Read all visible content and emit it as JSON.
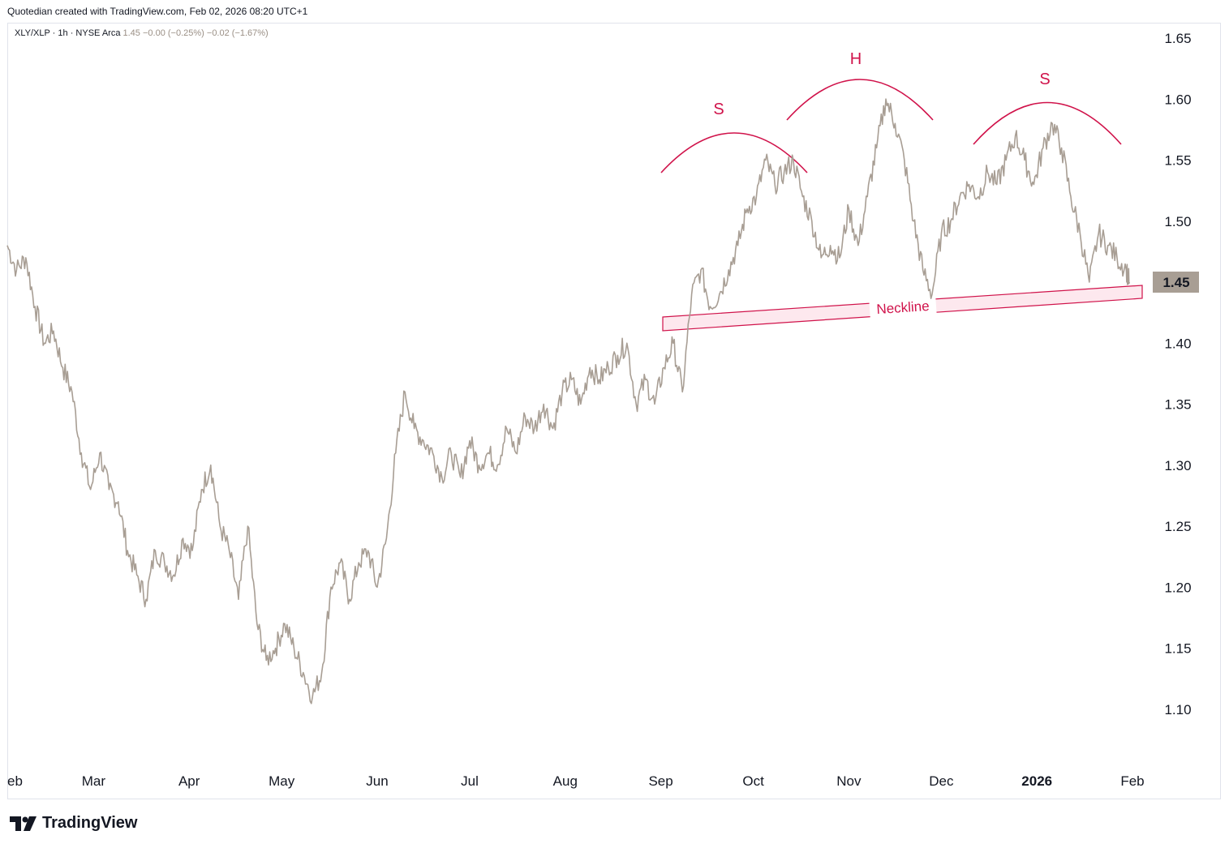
{
  "header": {
    "credit": "Quotedian created with TradingView.com, Feb 02, 2026 08:20 UTC+1"
  },
  "legend": {
    "symbol": "XLY/XLP · 1h · NYSE Arca",
    "last": "1.45",
    "change": "−0.00 (−0.25%)",
    "change2": "−0.02 (−1.67%)"
  },
  "footer": {
    "brand": "TradingView",
    "logo_icon": "tradingview-logo-icon"
  },
  "colors": {
    "price_line": "#a89e94",
    "annotation": "#d0124a",
    "neck_fill": "#fde8ee",
    "price_tag_bg": "#a89e94"
  },
  "chart_data": {
    "type": "line",
    "title": "",
    "xlabel": "",
    "ylabel": "",
    "ylim": [
      1.05,
      1.67
    ],
    "y_ticks": [
      "1.65",
      "1.60",
      "1.55",
      "1.50",
      "1.45",
      "1.40",
      "1.35",
      "1.30",
      "1.25",
      "1.20",
      "1.15",
      "1.10"
    ],
    "x_ticks": [
      "eb",
      "Mar",
      "Apr",
      "May",
      "Jun",
      "Jul",
      "Aug",
      "Sep",
      "Oct",
      "Nov",
      "Dec",
      "2026",
      "Feb"
    ],
    "last_price_tag": "1.45",
    "grid": false,
    "series": [
      {
        "x": [
          "2025-02-01",
          "2025-02-04",
          "2025-02-07",
          "2025-02-10",
          "2025-02-13",
          "2025-02-16",
          "2025-02-19",
          "2025-02-22",
          "2025-02-25",
          "2025-02-28",
          "2025-03-03",
          "2025-03-06",
          "2025-03-09",
          "2025-03-12",
          "2025-03-15",
          "2025-03-18",
          "2025-03-21",
          "2025-03-24",
          "2025-03-27",
          "2025-03-30",
          "2025-04-02",
          "2025-04-05",
          "2025-04-08",
          "2025-04-11",
          "2025-04-14",
          "2025-04-17",
          "2025-04-20",
          "2025-04-23",
          "2025-04-26",
          "2025-04-29",
          "2025-05-02",
          "2025-05-05",
          "2025-05-08",
          "2025-05-11",
          "2025-05-14",
          "2025-05-17",
          "2025-05-20",
          "2025-05-23",
          "2025-05-26",
          "2025-05-29",
          "2025-06-01",
          "2025-06-04",
          "2025-06-07",
          "2025-06-10",
          "2025-06-13",
          "2025-06-16",
          "2025-06-19",
          "2025-06-22",
          "2025-06-25",
          "2025-06-28",
          "2025-07-01",
          "2025-07-04",
          "2025-07-07",
          "2025-07-10",
          "2025-07-13",
          "2025-07-16",
          "2025-07-19",
          "2025-07-22",
          "2025-07-25",
          "2025-07-28",
          "2025-07-31",
          "2025-08-03",
          "2025-08-06",
          "2025-08-09",
          "2025-08-12",
          "2025-08-15",
          "2025-08-18",
          "2025-08-21",
          "2025-08-24",
          "2025-08-27",
          "2025-08-30",
          "2025-09-02",
          "2025-09-05",
          "2025-09-08",
          "2025-09-11",
          "2025-09-14",
          "2025-09-17",
          "2025-09-20",
          "2025-09-23",
          "2025-09-26",
          "2025-09-29",
          "2025-10-02",
          "2025-10-05",
          "2025-10-08",
          "2025-10-11",
          "2025-10-14",
          "2025-10-17",
          "2025-10-20",
          "2025-10-23",
          "2025-10-26",
          "2025-10-29",
          "2025-11-01",
          "2025-11-04",
          "2025-11-07",
          "2025-11-10",
          "2025-11-13",
          "2025-11-16",
          "2025-11-19",
          "2025-11-22",
          "2025-11-25",
          "2025-11-28",
          "2025-12-01",
          "2025-12-04",
          "2025-12-07",
          "2025-12-10",
          "2025-12-13",
          "2025-12-16",
          "2025-12-19",
          "2025-12-22",
          "2025-12-25",
          "2025-12-28",
          "2025-12-31",
          "2026-01-03",
          "2026-01-06",
          "2026-01-09",
          "2026-01-12",
          "2026-01-15",
          "2026-01-18",
          "2026-01-21",
          "2026-01-24",
          "2026-01-27",
          "2026-01-30",
          "2026-01-31"
        ],
        "y": [
          1.48,
          1.46,
          1.47,
          1.43,
          1.4,
          1.41,
          1.38,
          1.36,
          1.31,
          1.28,
          1.31,
          1.28,
          1.27,
          1.23,
          1.21,
          1.19,
          1.23,
          1.22,
          1.21,
          1.24,
          1.23,
          1.28,
          1.3,
          1.25,
          1.23,
          1.19,
          1.25,
          1.17,
          1.14,
          1.15,
          1.17,
          1.15,
          1.13,
          1.11,
          1.13,
          1.2,
          1.22,
          1.19,
          1.22,
          1.23,
          1.2,
          1.24,
          1.31,
          1.36,
          1.33,
          1.32,
          1.31,
          1.29,
          1.31,
          1.29,
          1.32,
          1.3,
          1.31,
          1.3,
          1.33,
          1.31,
          1.34,
          1.33,
          1.35,
          1.33,
          1.36,
          1.37,
          1.35,
          1.38,
          1.37,
          1.38,
          1.39,
          1.4,
          1.35,
          1.37,
          1.35,
          1.38,
          1.4,
          1.36,
          1.44,
          1.46,
          1.43,
          1.44,
          1.46,
          1.48,
          1.51,
          1.52,
          1.55,
          1.53,
          1.54,
          1.55,
          1.52,
          1.5,
          1.47,
          1.48,
          1.47,
          1.51,
          1.48,
          1.52,
          1.56,
          1.6,
          1.58,
          1.55,
          1.5,
          1.46,
          1.44,
          1.49,
          1.5,
          1.52,
          1.53,
          1.52,
          1.54,
          1.53,
          1.55,
          1.57,
          1.55,
          1.53,
          1.56,
          1.58,
          1.56,
          1.52,
          1.49,
          1.45,
          1.49,
          1.48,
          1.47,
          1.46,
          1.45
        ]
      }
    ],
    "annotations": [
      {
        "label": "S",
        "kind": "arc"
      },
      {
        "label": "H",
        "kind": "arc"
      },
      {
        "label": "S",
        "kind": "arc"
      },
      {
        "label": "Neckline",
        "kind": "band"
      }
    ]
  }
}
